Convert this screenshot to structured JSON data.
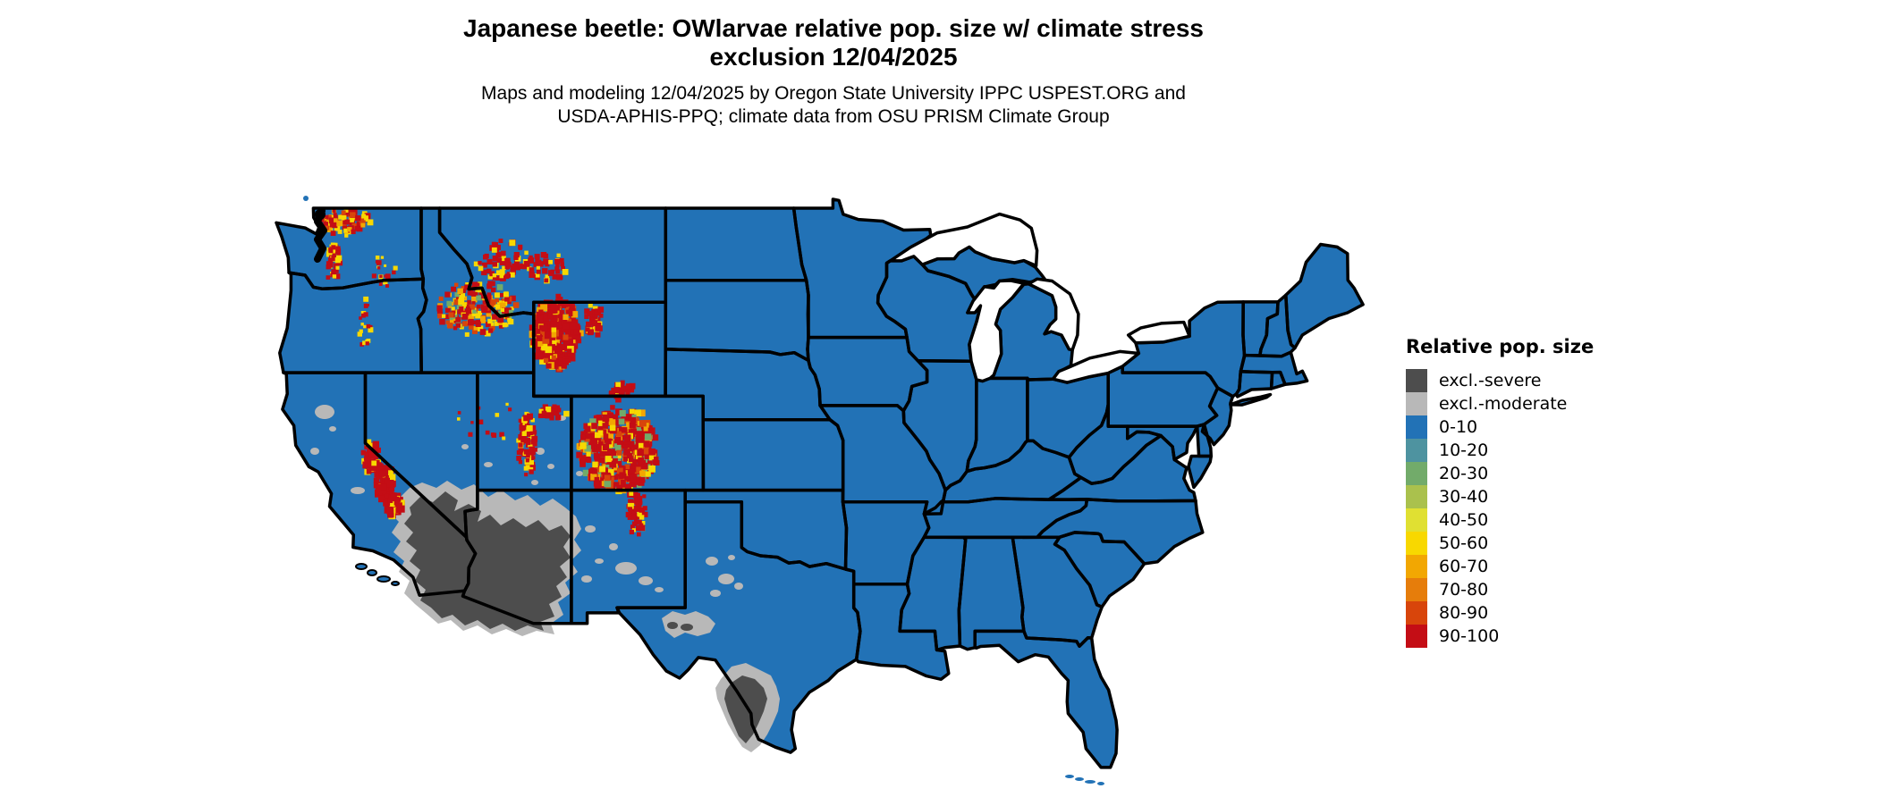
{
  "figure": {
    "title_line1": "Japanese beetle: OWlarvae relative pop. size w/ climate stress",
    "title_line2": "exclusion 12/04/2025",
    "subtitle_line1": "Maps and modeling 12/04/2025 by Oregon State University IPPC USPEST.ORG and",
    "subtitle_line2": "USDA-APHIS-PPQ; climate data from OSU PRISM Climate Group"
  },
  "legend": {
    "title": "Relative pop. size",
    "items": [
      {
        "label": "excl.-severe",
        "color": "#4d4d4d"
      },
      {
        "label": "excl.-moderate",
        "color": "#b8b8b8"
      },
      {
        "label": "0-10",
        "color": "#2272b6"
      },
      {
        "label": "10-20",
        "color": "#4e93a0"
      },
      {
        "label": "20-30",
        "color": "#72ab6a"
      },
      {
        "label": "30-40",
        "color": "#aac14d"
      },
      {
        "label": "40-50",
        "color": "#e0e032"
      },
      {
        "label": "50-60",
        "color": "#f8d800"
      },
      {
        "label": "60-70",
        "color": "#f2a702"
      },
      {
        "label": "70-80",
        "color": "#e67d0b"
      },
      {
        "label": "80-90",
        "color": "#d8450b"
      },
      {
        "label": "90-100",
        "color": "#c40d15"
      }
    ]
  },
  "map": {
    "fill_color": "#2272b6",
    "border_color": "#000000",
    "water_color": "#ffffff",
    "background_color": "#ffffff"
  }
}
